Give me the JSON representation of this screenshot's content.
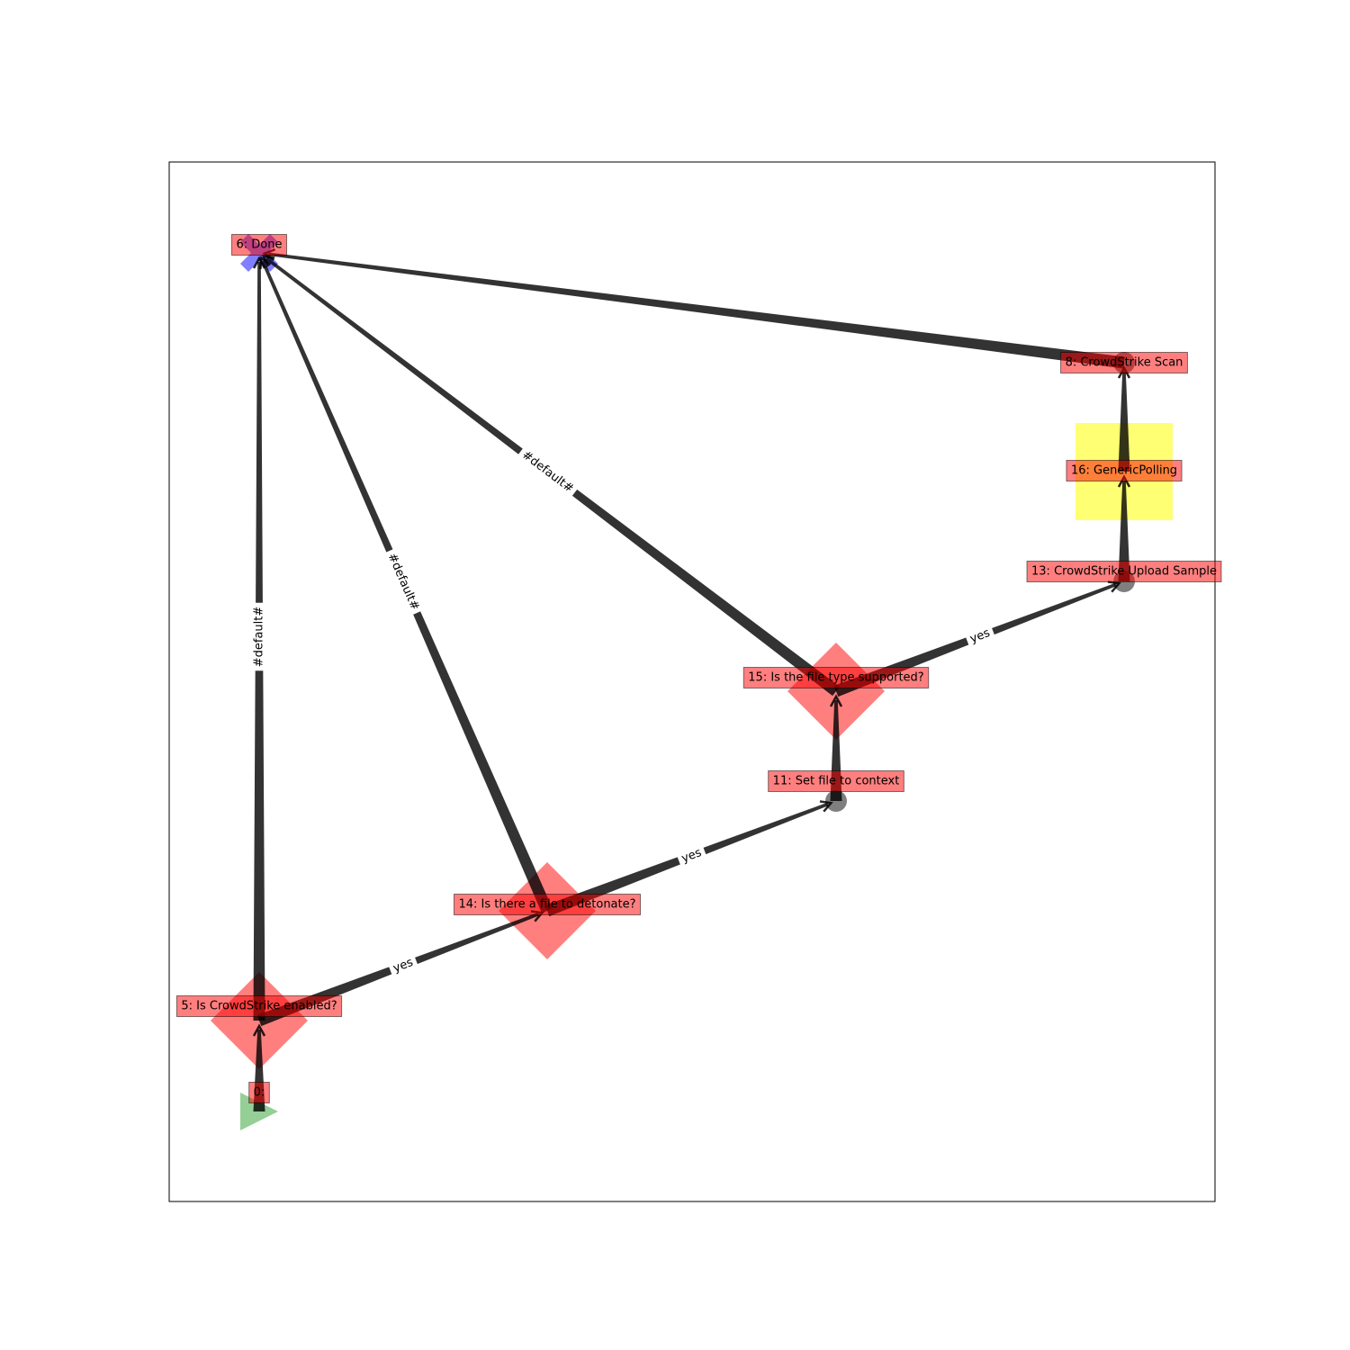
{
  "diagram": {
    "nodes": [
      {
        "id": "0",
        "label": "0:",
        "shape": "triangle-right",
        "color": "#2ca02c"
      },
      {
        "id": "5",
        "label": "5: Is CrowdStrike enabled?",
        "shape": "diamond",
        "color": "#ff0000"
      },
      {
        "id": "14",
        "label": "14: Is there a file to detonate?",
        "shape": "diamond",
        "color": "#ff0000"
      },
      {
        "id": "11",
        "label": "11: Set file to context",
        "shape": "circle",
        "color": "#000000"
      },
      {
        "id": "15",
        "label": "15: Is the file type supported?",
        "shape": "diamond",
        "color": "#ff0000"
      },
      {
        "id": "13",
        "label": "13: CrowdStrike Upload Sample",
        "shape": "circle",
        "color": "#000000"
      },
      {
        "id": "16",
        "label": "16: GenericPolling",
        "shape": "square",
        "color": "#ffff00"
      },
      {
        "id": "8",
        "label": "8: CrowdStrike Scan",
        "shape": "circle",
        "color": "#000000"
      },
      {
        "id": "6",
        "label": "6: Done",
        "shape": "x",
        "color": "#0000ff"
      }
    ],
    "edges": [
      {
        "from": "0",
        "to": "5",
        "label": ""
      },
      {
        "from": "5",
        "to": "14",
        "label": "yes"
      },
      {
        "from": "5",
        "to": "6",
        "label": "#default#"
      },
      {
        "from": "14",
        "to": "11",
        "label": "yes"
      },
      {
        "from": "14",
        "to": "6",
        "label": "#default#"
      },
      {
        "from": "11",
        "to": "15",
        "label": ""
      },
      {
        "from": "15",
        "to": "13",
        "label": "yes"
      },
      {
        "from": "15",
        "to": "6",
        "label": "#default#"
      },
      {
        "from": "13",
        "to": "16",
        "label": ""
      },
      {
        "from": "16",
        "to": "8",
        "label": ""
      },
      {
        "from": "8",
        "to": "6",
        "label": ""
      }
    ],
    "label_box_color": "#ff0000",
    "edge_color": "#000000"
  }
}
